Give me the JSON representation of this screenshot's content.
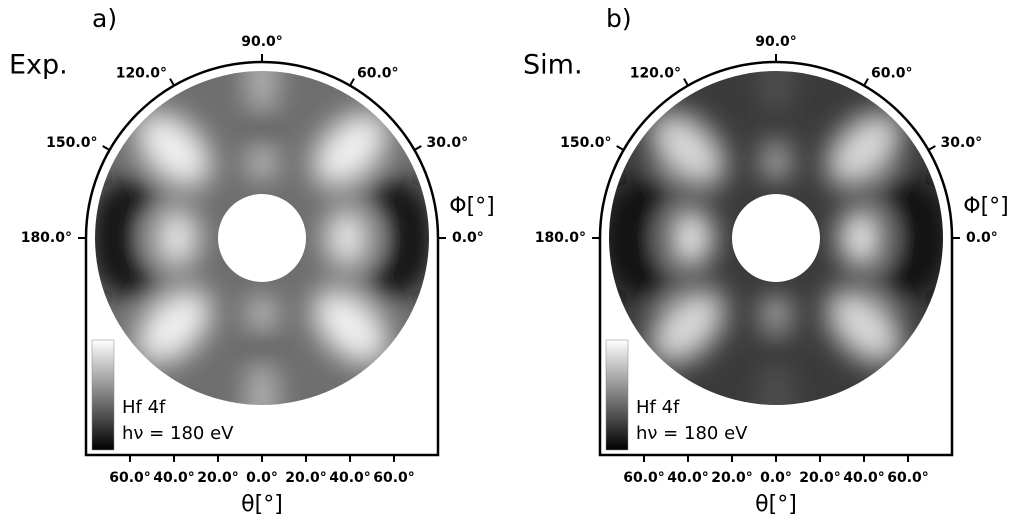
{
  "chart_data": [
    {
      "type": "polar-image",
      "panel_label": "a)",
      "title": "Exp.",
      "xlabel": "θ[°]",
      "angle_label": "Φ[°]",
      "annotations": [
        "Hf 4f",
        "hν = 180 eV"
      ],
      "xlim": [
        -80,
        80
      ],
      "xticks": [
        {
          "value": -60,
          "label": "60.0°"
        },
        {
          "value": -40,
          "label": "40.0°"
        },
        {
          "value": -20,
          "label": "20.0°"
        },
        {
          "value": 0,
          "label": "0.0°"
        },
        {
          "value": 20,
          "label": "20.0°"
        },
        {
          "value": 40,
          "label": "40.0°"
        },
        {
          "value": 60,
          "label": "60.0°"
        }
      ],
      "angle_ticks": [
        {
          "value": 0,
          "label": "0.0°"
        },
        {
          "value": 30,
          "label": "30.0°"
        },
        {
          "value": 60,
          "label": "60.0°"
        },
        {
          "value": 90,
          "label": "90.0°"
        },
        {
          "value": 120,
          "label": "120.0°"
        },
        {
          "value": 150,
          "label": "150.0°"
        },
        {
          "value": 180,
          "label": "180.0°"
        }
      ]
    },
    {
      "type": "polar-image",
      "panel_label": "b)",
      "title": "Sim.",
      "xlabel": "θ[°]",
      "angle_label": "Φ[°]",
      "annotations": [
        "Hf 4f",
        "hν = 180 eV"
      ],
      "xlim": [
        -80,
        80
      ],
      "xticks": [
        {
          "value": -60,
          "label": "60.0°"
        },
        {
          "value": -40,
          "label": "40.0°"
        },
        {
          "value": -20,
          "label": "20.0°"
        },
        {
          "value": 0,
          "label": "0.0°"
        },
        {
          "value": 20,
          "label": "20.0°"
        },
        {
          "value": 40,
          "label": "40.0°"
        },
        {
          "value": 60,
          "label": "60.0°"
        }
      ],
      "angle_ticks": [
        {
          "value": 0,
          "label": "0.0°"
        },
        {
          "value": 30,
          "label": "30.0°"
        },
        {
          "value": 60,
          "label": "60.0°"
        },
        {
          "value": 90,
          "label": "90.0°"
        },
        {
          "value": 120,
          "label": "120.0°"
        },
        {
          "value": 150,
          "label": "150.0°"
        },
        {
          "value": 180,
          "label": "180.0°"
        }
      ]
    }
  ]
}
